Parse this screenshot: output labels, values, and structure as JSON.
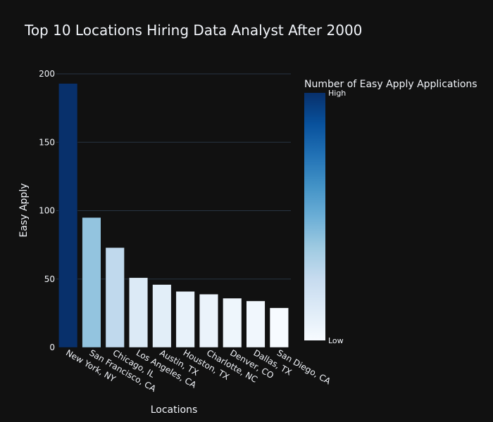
{
  "chart_data": {
    "type": "bar",
    "title": "Top 10 Locations Hiring Data Analyst After 2000",
    "xlabel": "Locations",
    "ylabel": "Easy Apply",
    "ylim": [
      0,
      200
    ],
    "yticks": [
      0,
      50,
      100,
      150,
      200
    ],
    "grid": true,
    "categories": [
      "New York, NY",
      "San Francisco, CA",
      "Chicago, IL",
      "Los Angeles, CA",
      "Austin, TX",
      "Houston, TX",
      "Charlotte, NC",
      "Denver, CO",
      "Dallas, TX",
      "San Diego, CA"
    ],
    "values": [
      193,
      95,
      73,
      51,
      46,
      41,
      39,
      36,
      34,
      29
    ],
    "colorbar": {
      "title": "Number of Easy Apply Applications",
      "high_label": "High",
      "low_label": "Low",
      "placement": "right",
      "colors": [
        "#f7fbff",
        "#deebf7",
        "#c6dbef",
        "#9ecae1",
        "#6baed6",
        "#4292c6",
        "#2171b5",
        "#08519c",
        "#08306b"
      ]
    }
  }
}
